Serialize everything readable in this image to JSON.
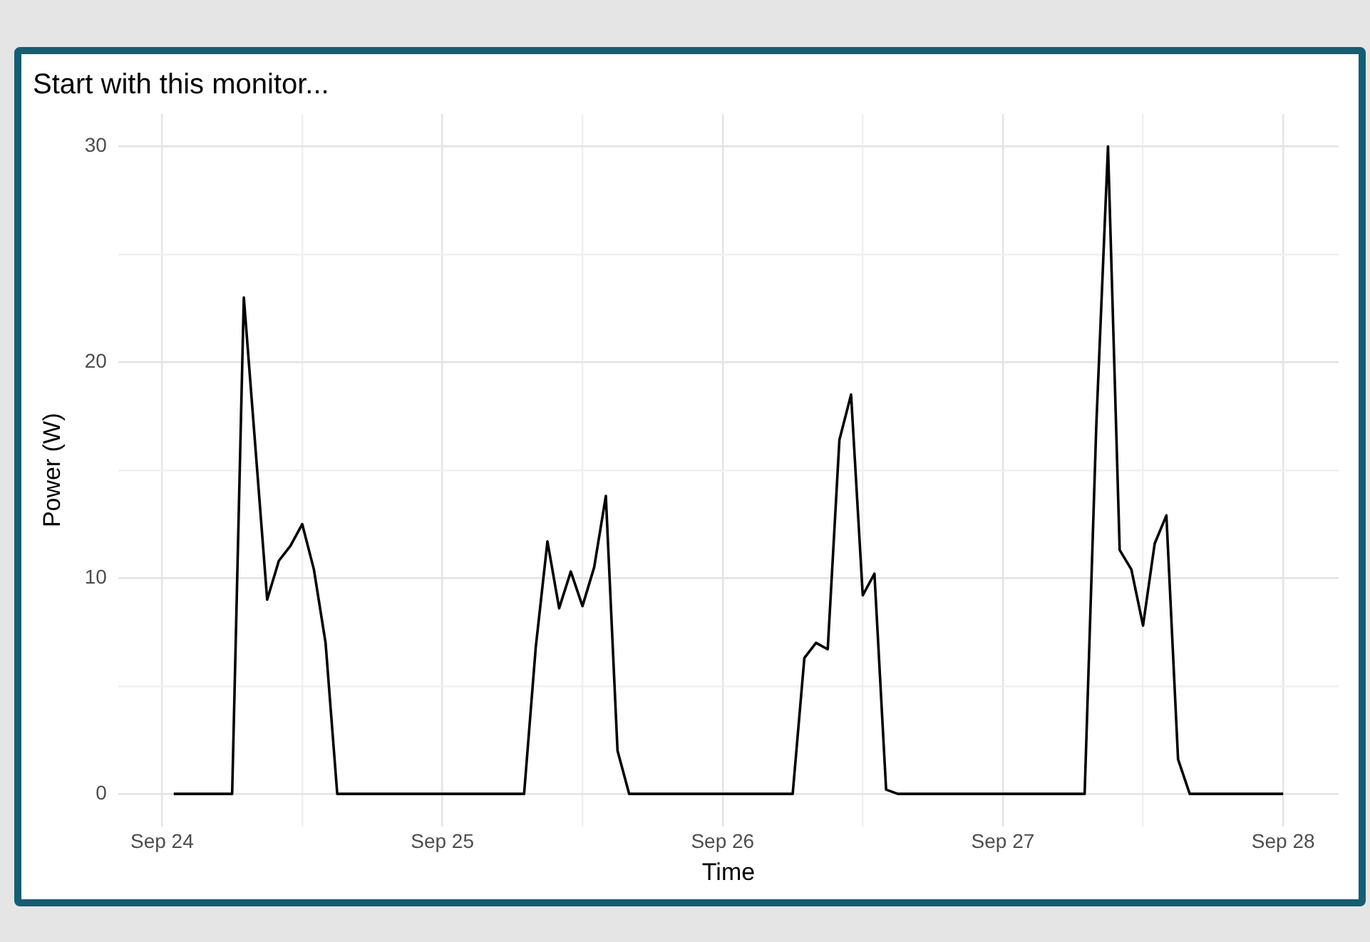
{
  "chart_data": {
    "type": "line",
    "title": "Start with this monitor...",
    "xlabel": "Time",
    "ylabel": "Power (W)",
    "x": [
      "--09-24T01:00",
      "--09-24T06:00",
      "--09-24T07:00",
      "--09-24T08:00",
      "--09-24T09:00",
      "--09-24T10:00",
      "--09-24T11:00",
      "--09-24T12:00",
      "--09-24T13:00",
      "--09-24T14:00",
      "--09-24T15:00",
      "--09-25T07:00",
      "--09-25T08:00",
      "--09-25T09:00",
      "--09-25T10:00",
      "--09-25T11:00",
      "--09-25T12:00",
      "--09-25T13:00",
      "--09-25T14:00",
      "--09-25T15:00",
      "--09-25T16:00",
      "--09-26T06:00",
      "--09-26T07:00",
      "--09-26T08:00",
      "--09-26T09:00",
      "--09-26T10:00",
      "--09-26T11:00",
      "--09-26T12:00",
      "--09-26T13:00",
      "--09-26T14:00",
      "--09-26T15:00",
      "--09-27T07:00",
      "--09-27T08:00",
      "--09-27T09:00",
      "--09-27T10:00",
      "--09-27T11:00",
      "--09-27T12:00",
      "--09-27T13:00",
      "--09-27T14:00",
      "--09-27T15:00",
      "--09-27T16:00",
      "--09-28T00:00"
    ],
    "series": [
      {
        "color": "#000000",
        "values": [
          0,
          0,
          23.0,
          16,
          9.0,
          10.8,
          11.5,
          12.5,
          10.4,
          7.0,
          0,
          0,
          6.8,
          11.7,
          8.6,
          10.3,
          8.7,
          10.5,
          13.8,
          2.0,
          0,
          0,
          6.3,
          7.0,
          6.7,
          16.4,
          18.5,
          9.2,
          10.2,
          0.2,
          0,
          0,
          17.1,
          30.0,
          11.3,
          10.4,
          7.8,
          11.6,
          12.9,
          1.6,
          0,
          0
        ]
      }
    ],
    "xlim": [
      "--09-23T20:15",
      "--09-28T04:45"
    ],
    "xticks": [
      {
        "value": "--09-24",
        "label": "Sep 24"
      },
      {
        "value": "--09-24T12:00",
        "label": null
      },
      {
        "value": "--09-25",
        "label": "Sep 25"
      },
      {
        "value": "--09-25T12:00",
        "label": null
      },
      {
        "value": "--09-26",
        "label": "Sep 26"
      },
      {
        "value": "--09-26T12:00",
        "label": null
      },
      {
        "value": "--09-27",
        "label": "Sep 27"
      },
      {
        "value": "--09-27T12:00",
        "label": null
      },
      {
        "value": "--09-28",
        "label": "Sep 28"
      }
    ],
    "ylim": [
      -1.5,
      31.5
    ],
    "yticks": [
      0,
      {
        "value": 5,
        "label": null
      },
      10,
      {
        "value": 15,
        "label": null
      },
      20,
      {
        "value": 25,
        "label": null
      },
      30
    ],
    "grid": true,
    "marker": "none",
    "line_style": "solid"
  }
}
